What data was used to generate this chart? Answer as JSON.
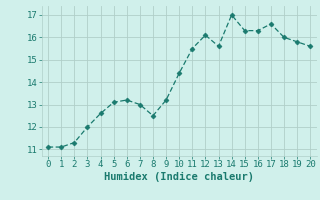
{
  "x": [
    0,
    1,
    2,
    3,
    4,
    5,
    6,
    7,
    8,
    9,
    10,
    11,
    12,
    13,
    14,
    15,
    16,
    17,
    18,
    19,
    20
  ],
  "y": [
    11.1,
    11.1,
    11.3,
    12.0,
    12.6,
    13.1,
    13.2,
    13.0,
    12.5,
    13.2,
    14.4,
    15.5,
    16.1,
    15.6,
    17.0,
    16.3,
    16.3,
    16.6,
    16.0,
    15.8,
    15.6
  ],
  "line_color": "#1a7a6e",
  "marker": "D",
  "marker_size": 2.5,
  "bg_color": "#d0f0eb",
  "grid_color": "#b0cfc9",
  "xlabel": "Humidex (Indice chaleur)",
  "ylim": [
    10.7,
    17.4
  ],
  "xlim": [
    -0.5,
    20.5
  ],
  "yticks": [
    11,
    12,
    13,
    14,
    15,
    16,
    17
  ],
  "xticks": [
    0,
    1,
    2,
    3,
    4,
    5,
    6,
    7,
    8,
    9,
    10,
    11,
    12,
    13,
    14,
    15,
    16,
    17,
    18,
    19,
    20
  ],
  "tick_color": "#1a7a6e",
  "label_color": "#1a7a6e",
  "xlabel_fontsize": 7.5,
  "tick_fontsize": 6.5
}
